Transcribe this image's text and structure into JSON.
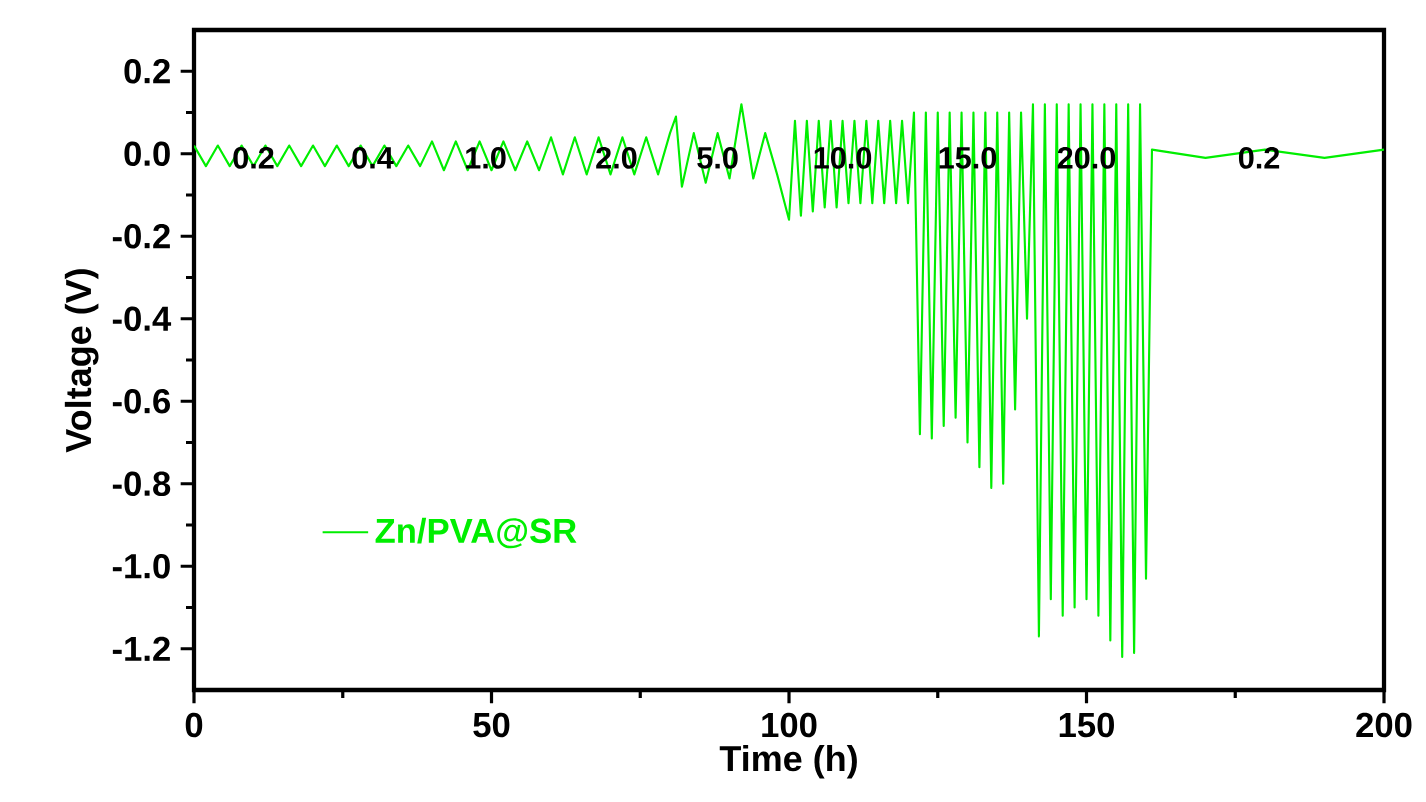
{
  "chart_data": {
    "type": "line",
    "xlabel": "Time (h)",
    "ylabel": "Voltage (V)",
    "xlim": [
      0,
      200
    ],
    "xticks": [
      0,
      50,
      100,
      150,
      200
    ],
    "ylim": [
      -1.3,
      0.3
    ],
    "yticks": [
      {
        "value": -1.2,
        "label": "-1.2"
      },
      {
        "value": -1.0,
        "label": "-1.0"
      },
      {
        "value": -0.8,
        "label": "-0.8"
      },
      {
        "value": -0.6,
        "label": "-0.6"
      },
      {
        "value": -0.4,
        "label": "-0.4"
      },
      {
        "value": -0.2,
        "label": "-0.2"
      },
      {
        "value": 0.0,
        "label": "0.0"
      },
      {
        "value": 0.2,
        "label": "0.2"
      }
    ],
    "legend": "bottom left",
    "series": [
      {
        "name": "Zn/PVA@SR",
        "color": "#00ee00",
        "x": [
          0,
          2,
          4,
          6,
          8,
          10,
          12,
          14,
          16,
          18,
          20,
          22,
          24,
          26,
          28,
          30,
          32,
          34,
          36,
          38,
          40,
          42,
          44,
          46,
          48,
          50,
          52,
          54,
          56,
          58,
          60,
          62,
          64,
          66,
          68,
          70,
          72,
          74,
          76,
          78,
          80,
          81,
          82,
          84,
          86,
          88,
          90,
          92,
          94,
          96,
          98,
          100,
          101,
          102,
          103,
          104,
          105,
          106,
          107,
          108,
          109,
          110,
          111,
          112,
          113,
          114,
          115,
          116,
          117,
          118,
          119,
          120,
          121,
          122,
          123,
          124,
          125,
          126,
          127,
          128,
          129,
          130,
          131,
          132,
          133,
          134,
          135,
          136,
          137,
          138,
          139,
          140,
          141,
          142,
          143,
          144,
          145,
          146,
          147,
          148,
          149,
          150,
          151,
          152,
          153,
          154,
          155,
          156,
          157,
          158,
          159,
          160,
          161,
          170,
          180,
          190,
          200
        ],
        "values": [
          0.02,
          -0.03,
          0.02,
          -0.03,
          0.02,
          -0.03,
          0.02,
          -0.03,
          0.02,
          -0.03,
          0.02,
          -0.03,
          0.02,
          -0.03,
          0.02,
          -0.03,
          0.02,
          -0.03,
          0.02,
          -0.03,
          0.03,
          -0.04,
          0.03,
          -0.04,
          0.03,
          -0.04,
          0.03,
          -0.04,
          0.03,
          -0.04,
          0.04,
          -0.05,
          0.04,
          -0.05,
          0.04,
          -0.05,
          0.04,
          -0.05,
          0.04,
          -0.05,
          0.05,
          0.09,
          -0.08,
          0.05,
          -0.07,
          0.05,
          -0.06,
          0.12,
          -0.06,
          0.05,
          -0.05,
          -0.16,
          0.08,
          -0.15,
          0.08,
          -0.14,
          0.08,
          -0.13,
          0.08,
          -0.13,
          0.08,
          -0.12,
          0.08,
          -0.12,
          0.08,
          -0.12,
          0.08,
          -0.12,
          0.08,
          -0.12,
          0.08,
          -0.12,
          0.1,
          -0.68,
          0.1,
          -0.69,
          0.1,
          -0.66,
          0.1,
          -0.64,
          0.1,
          -0.7,
          0.1,
          -0.76,
          0.1,
          -0.81,
          0.1,
          -0.8,
          0.1,
          -0.62,
          0.1,
          -0.4,
          0.12,
          -1.17,
          0.12,
          -1.08,
          0.12,
          -1.12,
          0.12,
          -1.1,
          0.12,
          -1.08,
          0.12,
          -1.12,
          0.12,
          -1.18,
          0.12,
          -1.22,
          0.12,
          -1.21,
          0.12,
          -1.03,
          0.01,
          -0.01,
          0.01,
          -0.01,
          0.01
        ]
      }
    ],
    "annotations": [
      {
        "text": "0.2",
        "x": 10,
        "y": -0.01
      },
      {
        "text": "0.4",
        "x": 30,
        "y": -0.01
      },
      {
        "text": "1.0",
        "x": 49,
        "y": -0.01
      },
      {
        "text": "2.0",
        "x": 71,
        "y": -0.01
      },
      {
        "text": "5.0",
        "x": 88,
        "y": -0.01
      },
      {
        "text": "10.0",
        "x": 109,
        "y": -0.01
      },
      {
        "text": "15.0",
        "x": 130,
        "y": -0.01
      },
      {
        "text": "20.0",
        "x": 150,
        "y": -0.01
      },
      {
        "text": "0.2",
        "x": 179,
        "y": -0.01
      }
    ]
  }
}
